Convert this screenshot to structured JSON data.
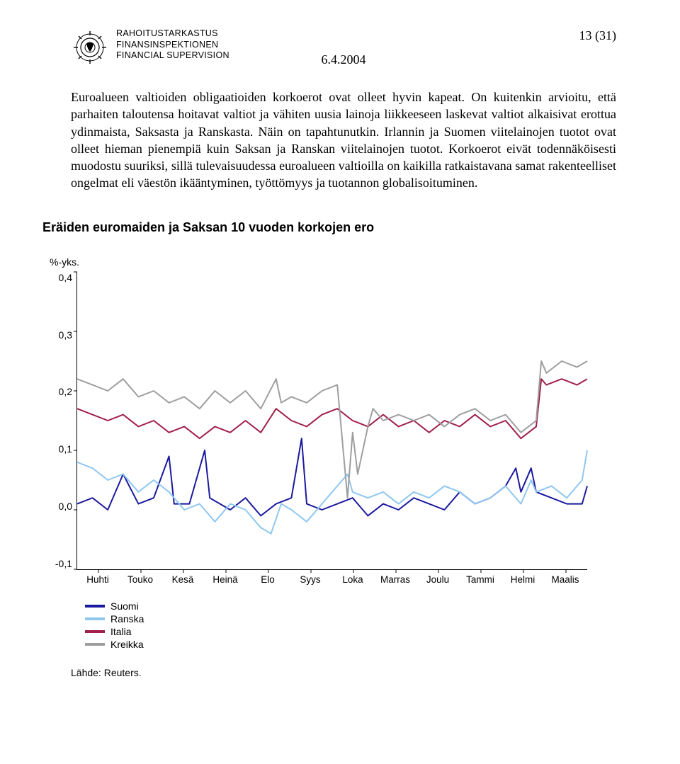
{
  "header": {
    "org_names": [
      "RAHOITUSTARKASTUS",
      "FINANSINSPEKTIONEN",
      "FINANCIAL SUPERVISION"
    ],
    "page_counter": "13 (31)",
    "date": "6.4.2004"
  },
  "body": {
    "text": "Euroalueen valtioiden obligaatioiden korkoerot ovat olleet hyvin kapeat. On kuitenkin arvioitu, että parhaiten taloutensa hoitavat valtiot ja vähiten uusia lainoja liikkeeseen laskevat valtiot alkaisivat erottua ydinmaista, Saksasta ja Ranskasta. Näin on tapahtunutkin. Irlannin ja Suomen viitelainojen tuotot ovat olleet hieman pienempiä kuin Saksan ja Ranskan viitelainojen tuotot. Korkoerot eivät todennäköisesti muodostu suuriksi, sillä tulevaisuudessa euroalueen valtioilla on kaikilla ratkaistavana samat rakenteelliset ongelmat eli väestön ikääntyminen, työttömyys ja tuotannon globalisoituminen."
  },
  "chart": {
    "type": "line",
    "title": "Eräiden euromaiden ja Saksan 10 vuoden korkojen ero",
    "y_unit_label": "%-yks.",
    "ylim": [
      -0.1,
      0.4
    ],
    "y_ticks": [
      "0,4",
      "0,3",
      "0,2",
      "0,1",
      "0,0",
      "-0,1"
    ],
    "x_labels": [
      "Huhti",
      "Touko",
      "Kesä",
      "Heinä",
      "Elo",
      "Syys",
      "Loka",
      "Marras",
      "Joulu",
      "Tammi",
      "Helmi",
      "Maalis"
    ],
    "series": [
      {
        "name": "Suomi",
        "color": "#1a1a9e",
        "stroke_width": 2,
        "points": [
          [
            0,
            0.01
          ],
          [
            3,
            0.02
          ],
          [
            6,
            0.0
          ],
          [
            9,
            0.06
          ],
          [
            12,
            0.01
          ],
          [
            15,
            0.02
          ],
          [
            18,
            0.09
          ],
          [
            19,
            0.01
          ],
          [
            22,
            0.01
          ],
          [
            25,
            0.1
          ],
          [
            26,
            0.02
          ],
          [
            30,
            0.0
          ],
          [
            33,
            0.02
          ],
          [
            36,
            -0.01
          ],
          [
            39,
            0.01
          ],
          [
            42,
            0.02
          ],
          [
            44,
            0.12
          ],
          [
            45,
            0.01
          ],
          [
            48,
            0.0
          ],
          [
            51,
            0.01
          ],
          [
            54,
            0.02
          ],
          [
            57,
            -0.01
          ],
          [
            60,
            0.01
          ],
          [
            63,
            0.0
          ],
          [
            66,
            0.02
          ],
          [
            69,
            0.01
          ],
          [
            72,
            0.0
          ],
          [
            75,
            0.03
          ],
          [
            78,
            0.01
          ],
          [
            81,
            0.02
          ],
          [
            84,
            0.04
          ],
          [
            86,
            0.07
          ],
          [
            87,
            0.03
          ],
          [
            89,
            0.07
          ],
          [
            90,
            0.03
          ],
          [
            93,
            0.02
          ],
          [
            96,
            0.01
          ],
          [
            99,
            0.01
          ],
          [
            100,
            0.04
          ]
        ]
      },
      {
        "name": "Ranska",
        "color": "#8fc7f0",
        "stroke_width": 2,
        "points": [
          [
            0,
            0.08
          ],
          [
            3,
            0.07
          ],
          [
            6,
            0.05
          ],
          [
            9,
            0.06
          ],
          [
            12,
            0.03
          ],
          [
            15,
            0.05
          ],
          [
            18,
            0.03
          ],
          [
            21,
            0.0
          ],
          [
            24,
            0.01
          ],
          [
            27,
            -0.02
          ],
          [
            30,
            0.01
          ],
          [
            33,
            0.0
          ],
          [
            36,
            -0.03
          ],
          [
            38,
            -0.04
          ],
          [
            40,
            0.01
          ],
          [
            42,
            0.0
          ],
          [
            45,
            -0.02
          ],
          [
            48,
            0.01
          ],
          [
            51,
            0.04
          ],
          [
            53,
            0.06
          ],
          [
            54,
            0.03
          ],
          [
            57,
            0.02
          ],
          [
            60,
            0.03
          ],
          [
            63,
            0.01
          ],
          [
            66,
            0.03
          ],
          [
            69,
            0.02
          ],
          [
            72,
            0.04
          ],
          [
            75,
            0.03
          ],
          [
            78,
            0.01
          ],
          [
            81,
            0.02
          ],
          [
            84,
            0.04
          ],
          [
            87,
            0.01
          ],
          [
            89,
            0.05
          ],
          [
            90,
            0.03
          ],
          [
            93,
            0.04
          ],
          [
            96,
            0.02
          ],
          [
            99,
            0.05
          ],
          [
            100,
            0.1
          ]
        ]
      },
      {
        "name": "Italia",
        "color": "#a02048",
        "stroke_width": 2,
        "points": [
          [
            0,
            0.17
          ],
          [
            3,
            0.16
          ],
          [
            6,
            0.15
          ],
          [
            9,
            0.16
          ],
          [
            12,
            0.14
          ],
          [
            15,
            0.15
          ],
          [
            18,
            0.13
          ],
          [
            21,
            0.14
          ],
          [
            24,
            0.12
          ],
          [
            27,
            0.14
          ],
          [
            30,
            0.13
          ],
          [
            33,
            0.15
          ],
          [
            36,
            0.13
          ],
          [
            39,
            0.17
          ],
          [
            42,
            0.15
          ],
          [
            45,
            0.14
          ],
          [
            48,
            0.16
          ],
          [
            51,
            0.17
          ],
          [
            54,
            0.15
          ],
          [
            57,
            0.14
          ],
          [
            60,
            0.16
          ],
          [
            63,
            0.14
          ],
          [
            66,
            0.15
          ],
          [
            69,
            0.13
          ],
          [
            72,
            0.15
          ],
          [
            75,
            0.14
          ],
          [
            78,
            0.16
          ],
          [
            81,
            0.14
          ],
          [
            84,
            0.15
          ],
          [
            87,
            0.12
          ],
          [
            90,
            0.14
          ],
          [
            91,
            0.22
          ],
          [
            92,
            0.21
          ],
          [
            95,
            0.22
          ],
          [
            98,
            0.21
          ],
          [
            100,
            0.22
          ]
        ]
      },
      {
        "name": "Kreikka",
        "color": "#9e9e9e",
        "stroke_width": 2,
        "points": [
          [
            0,
            0.22
          ],
          [
            3,
            0.21
          ],
          [
            6,
            0.2
          ],
          [
            9,
            0.22
          ],
          [
            12,
            0.19
          ],
          [
            15,
            0.2
          ],
          [
            18,
            0.18
          ],
          [
            21,
            0.19
          ],
          [
            24,
            0.17
          ],
          [
            27,
            0.2
          ],
          [
            30,
            0.18
          ],
          [
            33,
            0.2
          ],
          [
            36,
            0.17
          ],
          [
            39,
            0.22
          ],
          [
            40,
            0.18
          ],
          [
            42,
            0.19
          ],
          [
            45,
            0.18
          ],
          [
            48,
            0.2
          ],
          [
            51,
            0.21
          ],
          [
            53,
            0.02
          ],
          [
            54,
            0.13
          ],
          [
            55,
            0.06
          ],
          [
            57,
            0.14
          ],
          [
            58,
            0.17
          ],
          [
            60,
            0.15
          ],
          [
            63,
            0.16
          ],
          [
            66,
            0.15
          ],
          [
            69,
            0.16
          ],
          [
            72,
            0.14
          ],
          [
            75,
            0.16
          ],
          [
            78,
            0.17
          ],
          [
            81,
            0.15
          ],
          [
            84,
            0.16
          ],
          [
            87,
            0.13
          ],
          [
            90,
            0.15
          ],
          [
            91,
            0.25
          ],
          [
            92,
            0.23
          ],
          [
            95,
            0.25
          ],
          [
            98,
            0.24
          ],
          [
            100,
            0.25
          ]
        ]
      }
    ],
    "legend_labels": [
      "Suomi",
      "Ranska",
      "Italia",
      "Kreikka"
    ],
    "background_color": "#ffffff",
    "axis_color": "#000000",
    "title_fontsize": 18,
    "label_fontsize": 14
  },
  "source": "Lähde: Reuters."
}
